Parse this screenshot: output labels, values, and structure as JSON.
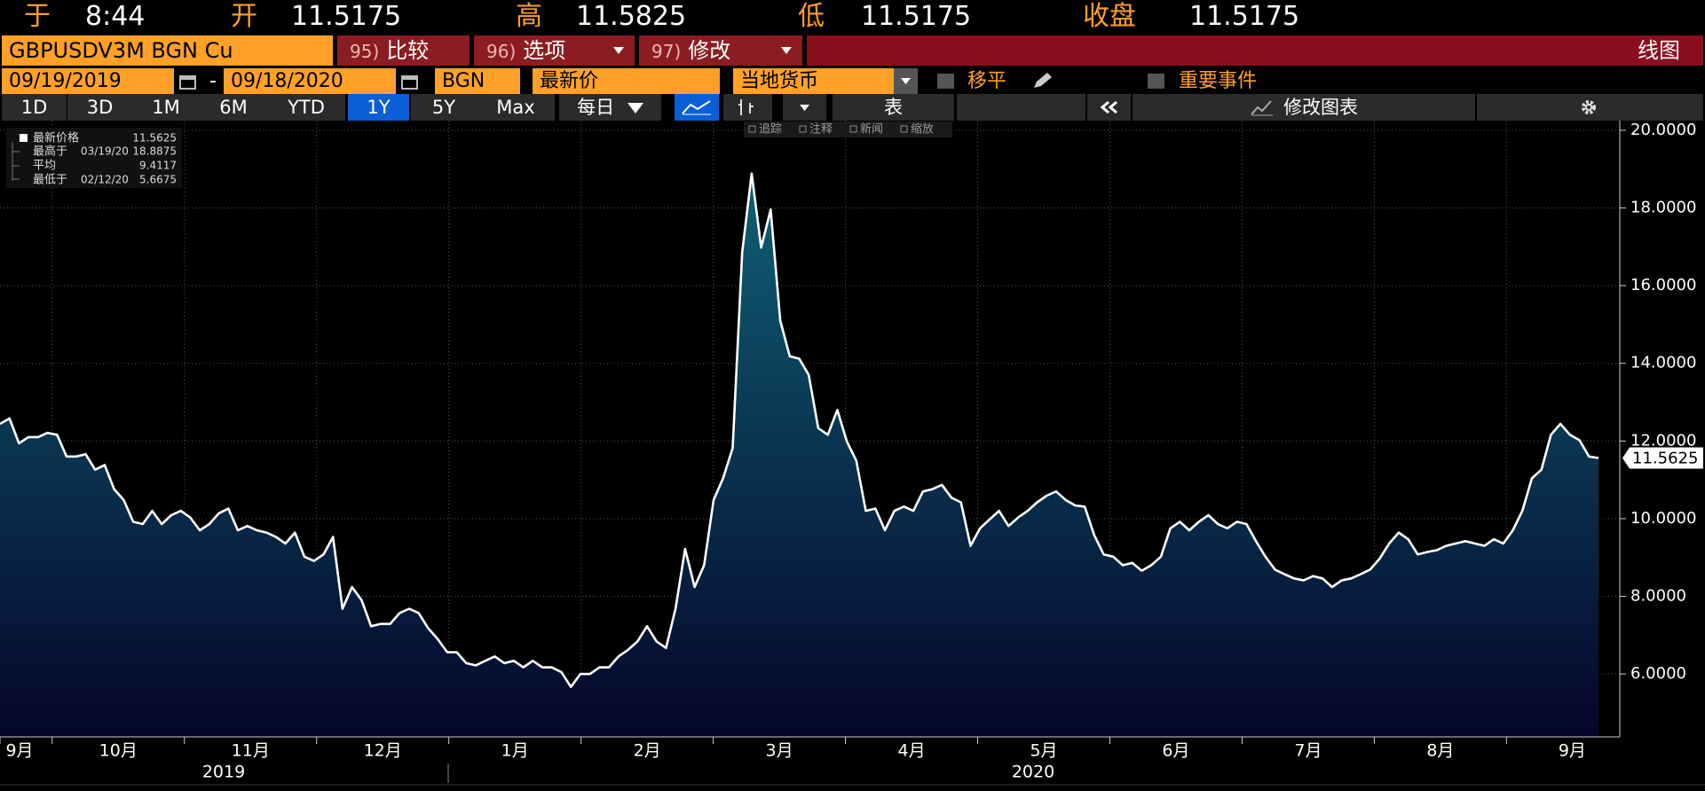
{
  "header": {
    "time_label": "于",
    "time": "8:44",
    "open_label": "开",
    "open": "11.5175",
    "high_label": "高",
    "high": "11.5825",
    "low_label": "低",
    "low": "11.5175",
    "close_label": "收盘",
    "close": "11.5175"
  },
  "toolbar": {
    "ticker": "GBPUSDV3M BGN Cu",
    "compare_num": "95)",
    "compare": "比较",
    "options_num": "96)",
    "options": "选项",
    "edit_num": "97)",
    "edit": "修改",
    "chart_kind": "线图",
    "start_date": "09/19/2019",
    "dash": "-",
    "end_date": "09/18/2020",
    "source": "BGN",
    "field": "最新价",
    "currency": "当地货币",
    "smoothing": "移平",
    "events": "重要事件",
    "periods": [
      "1D",
      "3D",
      "1M",
      "6M",
      "YTD",
      "1Y",
      "5Y",
      "Max"
    ],
    "active_period": "1Y",
    "frequency": "每日",
    "table": "表",
    "edit_chart": "修改图表",
    "tools": [
      "追踪",
      "注释",
      "新闻",
      "缩放"
    ]
  },
  "chart_data": {
    "type": "line",
    "series": [
      {
        "name": "最新价格",
        "color": "#ffffff",
        "last": 11.5625,
        "values": [
          12.44,
          12.58,
          11.94,
          12.1,
          12.1,
          12.21,
          12.16,
          11.6,
          11.6,
          11.66,
          11.26,
          11.38,
          10.76,
          10.48,
          9.92,
          9.86,
          10.2,
          9.86,
          10.09,
          10.2,
          10.03,
          9.7,
          9.86,
          10.14,
          10.26,
          9.7,
          9.81,
          9.7,
          9.64,
          9.53,
          9.36,
          9.64,
          9.02,
          8.91,
          9.08,
          9.53,
          7.68,
          8.24,
          7.9,
          7.23,
          7.29,
          7.29,
          7.57,
          7.68,
          7.57,
          7.18,
          6.9,
          6.56,
          6.56,
          6.28,
          6.22,
          6.34,
          6.45,
          6.28,
          6.34,
          6.17,
          6.34,
          6.17,
          6.17,
          6.05,
          5.6675,
          6.0,
          6.0,
          6.17,
          6.17,
          6.45,
          6.62,
          6.84,
          7.23,
          6.84,
          6.67,
          7.68,
          9.22,
          8.24,
          8.8,
          10.48,
          11.04,
          11.82,
          16.86,
          18.8875,
          16.98,
          17.96,
          15.1,
          14.18,
          14.12,
          13.7,
          12.33,
          12.16,
          12.8,
          11.99,
          11.49,
          10.2,
          10.26,
          9.7,
          10.2,
          10.31,
          10.2,
          10.7,
          10.76,
          10.87,
          10.54,
          10.42,
          9.3,
          9.75,
          9.98,
          10.2,
          9.81,
          10.03,
          10.2,
          10.42,
          10.59,
          10.7,
          10.48,
          10.34,
          10.31,
          9.58,
          9.08,
          9.02,
          8.8,
          8.86,
          8.66,
          8.8,
          9.02,
          9.75,
          9.92,
          9.7,
          9.92,
          10.09,
          9.86,
          9.75,
          9.92,
          9.86,
          9.42,
          9.02,
          8.69,
          8.57,
          8.46,
          8.41,
          8.52,
          8.46,
          8.24,
          8.41,
          8.46,
          8.57,
          8.69,
          8.97,
          9.36,
          9.64,
          9.47,
          9.08,
          9.14,
          9.19,
          9.3,
          9.36,
          9.42,
          9.36,
          9.3,
          9.47,
          9.36,
          9.7,
          10.2,
          11.04,
          11.26,
          12.16,
          12.44,
          12.16,
          12.02,
          11.6,
          11.5625
        ]
      }
    ],
    "stats": [
      {
        "label": "最高于",
        "date": "03/19/20",
        "value": 18.8875
      },
      {
        "label": "平均",
        "value": 9.4117
      },
      {
        "label": "最低于",
        "date": "02/12/20",
        "value": 5.6675
      }
    ],
    "fill_top": "#0f6075",
    "fill_bottom": "#05052a",
    "grid": true,
    "ylim": [
      4.38,
      20.25
    ],
    "yticks": [
      {
        "value": 6,
        "label": "6.0000"
      },
      {
        "value": 8,
        "label": "8.0000"
      },
      {
        "value": 10,
        "label": "10.0000"
      },
      {
        "value": 12,
        "label": "12.0000"
      },
      {
        "value": 14,
        "label": "14.0000"
      },
      {
        "value": 16,
        "label": "16.0000"
      },
      {
        "value": 18,
        "label": "18.0000"
      },
      {
        "value": 20,
        "label": "20.0000"
      }
    ],
    "months": [
      "9月",
      "10月",
      "11月",
      "12月",
      "1月",
      "2月",
      "3月",
      "4月",
      "5月",
      "6月",
      "7月",
      "8月",
      "9月"
    ],
    "years": [
      "2019",
      "2020"
    ]
  }
}
